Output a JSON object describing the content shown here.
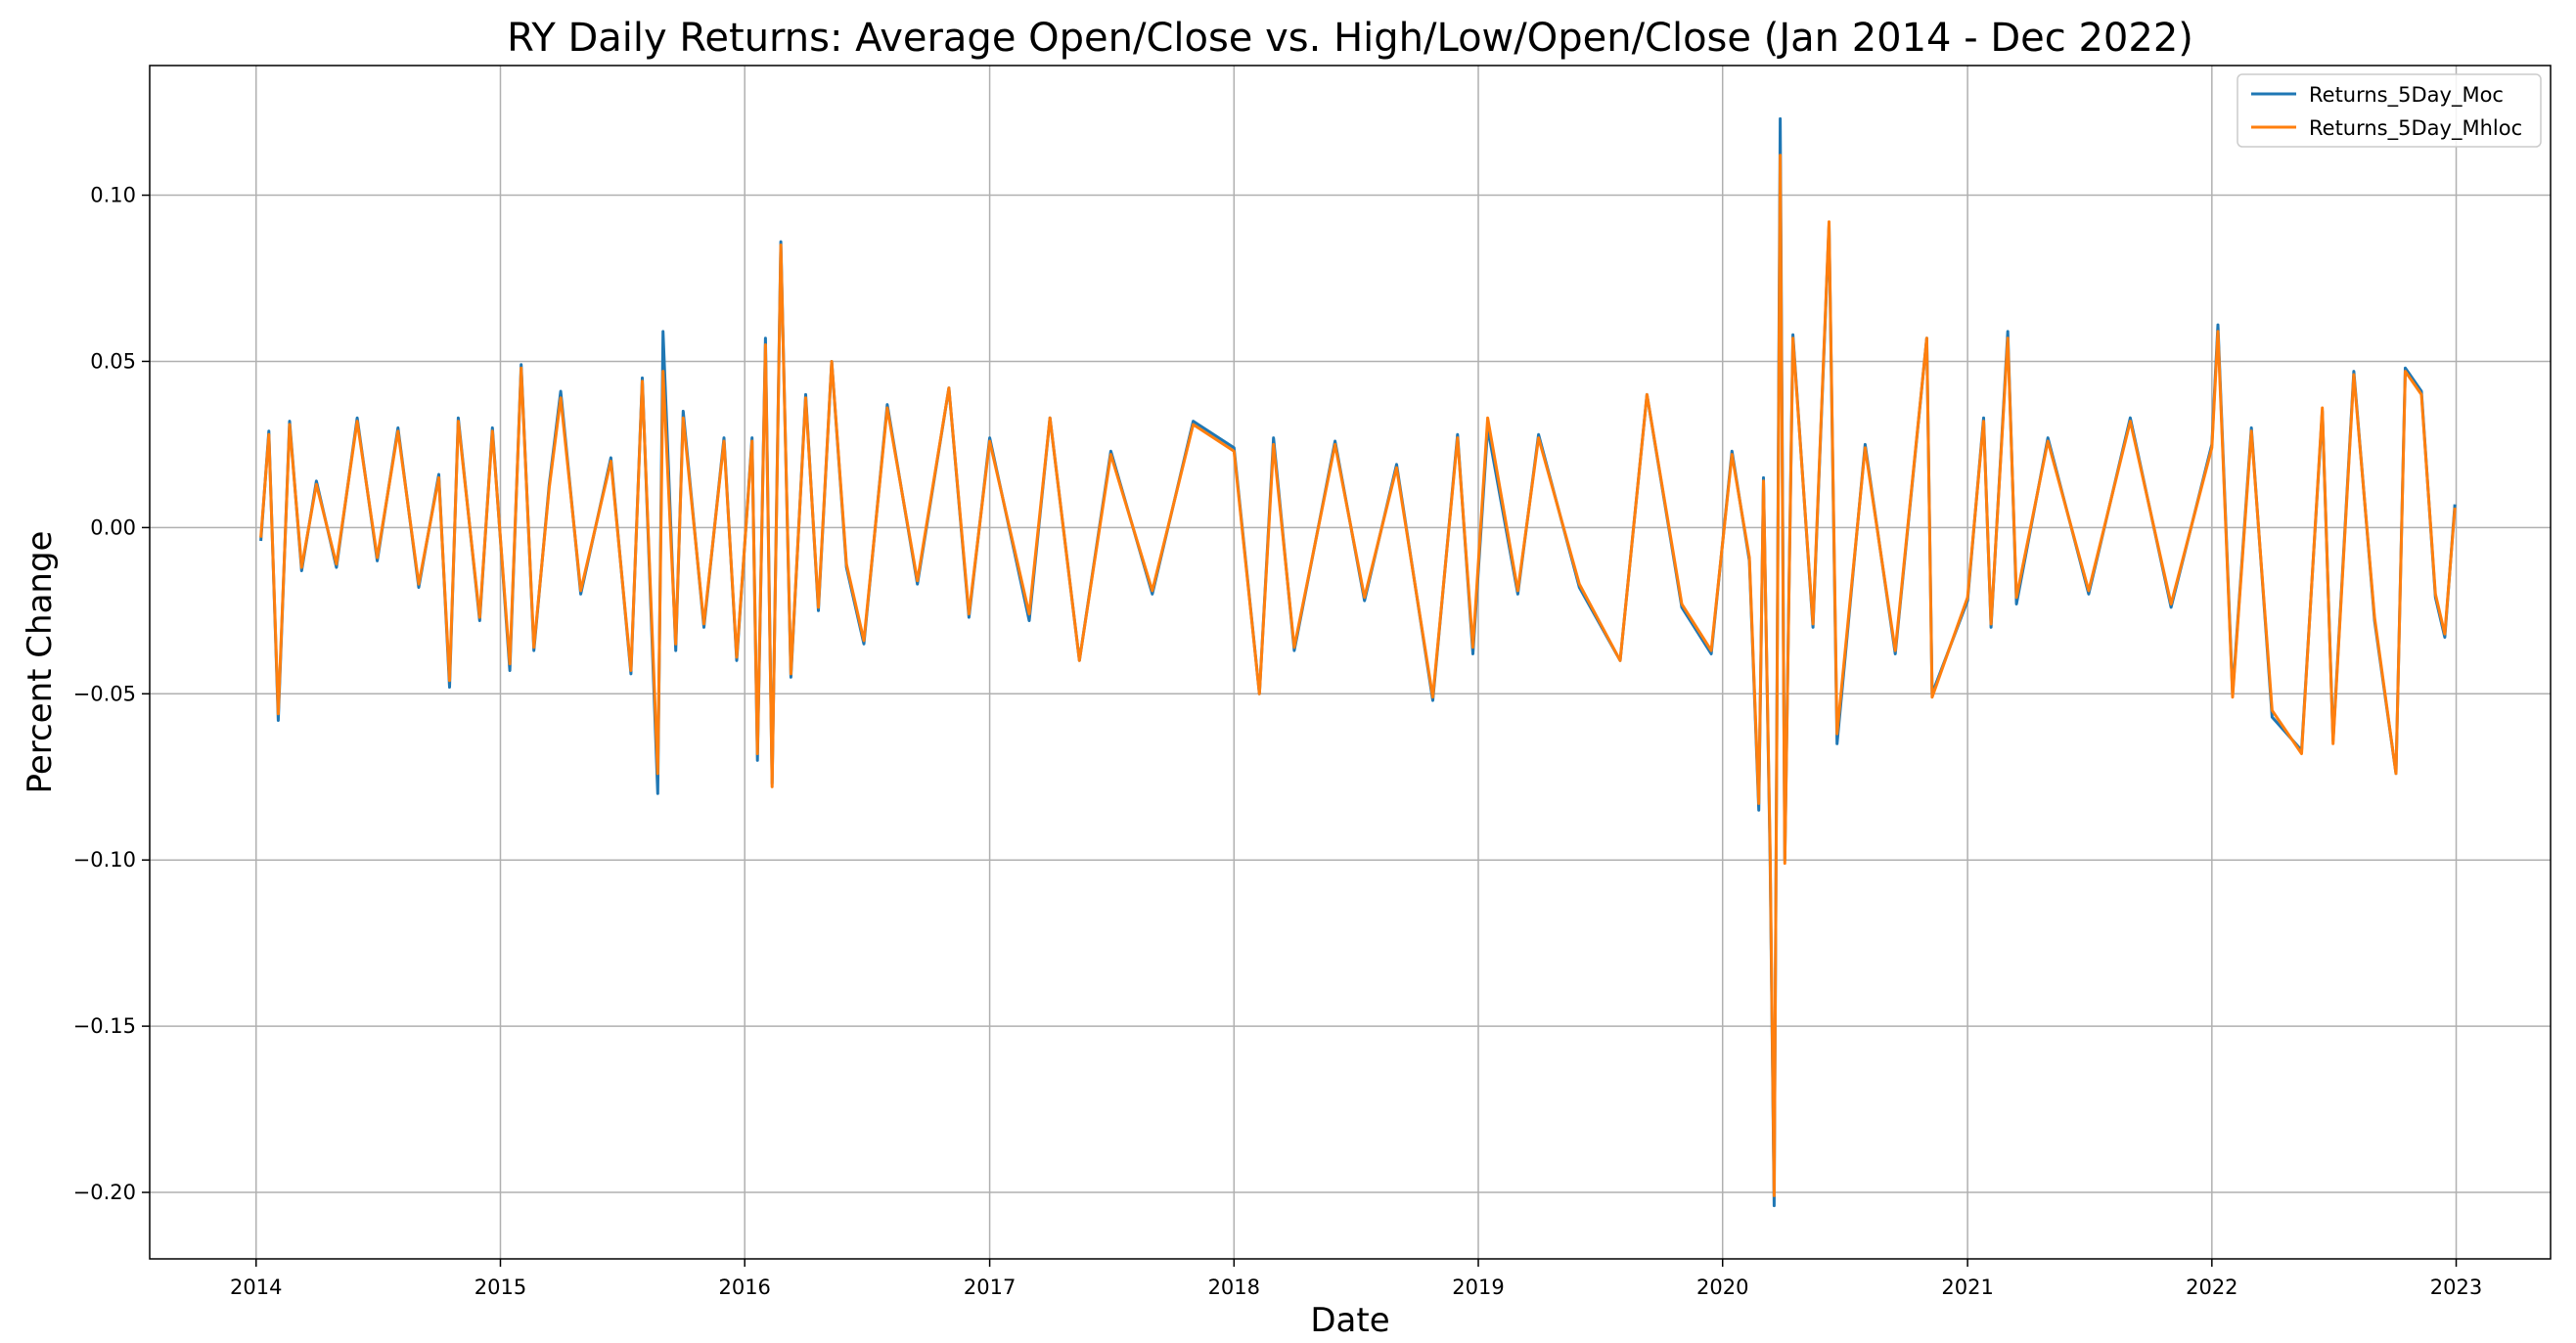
{
  "chart_data": {
    "type": "line",
    "title": "RY Daily Returns: Average Open/Close vs. High/Low/Open/Close (Jan 2014 - Dec 2022)",
    "xlabel": "Date",
    "ylabel": "Percent Change",
    "x_range": [
      "2013-07-26",
      "2023-05-22"
    ],
    "ylim": [
      -0.22,
      0.139
    ],
    "x_ticks": [
      "2014",
      "2015",
      "2016",
      "2017",
      "2018",
      "2019",
      "2020",
      "2021",
      "2022",
      "2023"
    ],
    "y_ticks": [
      "−0.20",
      "−0.15",
      "−0.10",
      "−0.05",
      "0.00",
      "0.05",
      "0.10"
    ],
    "grid": true,
    "legend_position": "top-right",
    "series": [
      {
        "name": "Returns_5Day_Moc",
        "color": "#1f77b4",
        "points": [
          [
            "2014-01-08",
            -0.004
          ],
          [
            "2014-01-20",
            0.029
          ],
          [
            "2014-02-03",
            -0.058
          ],
          [
            "2014-02-20",
            0.032
          ],
          [
            "2014-03-10",
            -0.013
          ],
          [
            "2014-04-01",
            0.014
          ],
          [
            "2014-05-01",
            -0.012
          ],
          [
            "2014-06-01",
            0.033
          ],
          [
            "2014-07-01",
            -0.01
          ],
          [
            "2014-08-01",
            0.03
          ],
          [
            "2014-09-01",
            -0.018
          ],
          [
            "2014-10-01",
            0.016
          ],
          [
            "2014-10-17",
            -0.048
          ],
          [
            "2014-10-30",
            0.033
          ],
          [
            "2014-12-01",
            -0.028
          ],
          [
            "2014-12-20",
            0.03
          ],
          [
            "2015-01-15",
            -0.043
          ],
          [
            "2015-02-01",
            0.049
          ],
          [
            "2015-02-20",
            -0.037
          ],
          [
            "2015-03-15",
            0.013
          ],
          [
            "2015-04-01",
            0.041
          ],
          [
            "2015-05-01",
            -0.02
          ],
          [
            "2015-06-15",
            0.021
          ],
          [
            "2015-07-15",
            -0.044
          ],
          [
            "2015-08-01",
            0.045
          ],
          [
            "2015-08-24",
            -0.08
          ],
          [
            "2015-09-01",
            0.059
          ],
          [
            "2015-09-20",
            -0.037
          ],
          [
            "2015-10-01",
            0.035
          ],
          [
            "2015-11-01",
            -0.03
          ],
          [
            "2015-12-01",
            0.027
          ],
          [
            "2015-12-20",
            -0.04
          ],
          [
            "2016-01-12",
            0.027
          ],
          [
            "2016-01-20",
            -0.07
          ],
          [
            "2016-02-01",
            0.057
          ],
          [
            "2016-02-11",
            -0.077
          ],
          [
            "2016-02-24",
            0.086
          ],
          [
            "2016-03-10",
            -0.045
          ],
          [
            "2016-04-01",
            0.04
          ],
          [
            "2016-04-20",
            -0.025
          ],
          [
            "2016-05-10",
            0.05
          ],
          [
            "2016-06-01",
            -0.012
          ],
          [
            "2016-06-27",
            -0.035
          ],
          [
            "2016-08-01",
            0.037
          ],
          [
            "2016-09-15",
            -0.017
          ],
          [
            "2016-11-01",
            0.042
          ],
          [
            "2016-12-01",
            -0.027
          ],
          [
            "2017-01-01",
            0.027
          ],
          [
            "2017-03-01",
            -0.028
          ],
          [
            "2017-04-01",
            0.033
          ],
          [
            "2017-05-15",
            -0.04
          ],
          [
            "2017-07-01",
            0.023
          ],
          [
            "2017-09-01",
            -0.02
          ],
          [
            "2017-11-01",
            0.032
          ],
          [
            "2018-01-01",
            0.024
          ],
          [
            "2018-02-08",
            -0.05
          ],
          [
            "2018-03-01",
            0.027
          ],
          [
            "2018-04-01",
            -0.037
          ],
          [
            "2018-06-01",
            0.026
          ],
          [
            "2018-07-15",
            -0.022
          ],
          [
            "2018-09-01",
            0.019
          ],
          [
            "2018-10-25",
            -0.052
          ],
          [
            "2018-12-01",
            0.028
          ],
          [
            "2018-12-24",
            -0.038
          ],
          [
            "2019-01-15",
            0.03
          ],
          [
            "2019-03-01",
            -0.02
          ],
          [
            "2019-04-01",
            0.028
          ],
          [
            "2019-06-01",
            -0.018
          ],
          [
            "2019-08-01",
            -0.04
          ],
          [
            "2019-09-10",
            0.04
          ],
          [
            "2019-11-01",
            -0.024
          ],
          [
            "2019-12-15",
            -0.038
          ],
          [
            "2020-01-15",
            0.023
          ],
          [
            "2020-02-10",
            -0.01
          ],
          [
            "2020-02-24",
            -0.085
          ],
          [
            "2020-03-02",
            0.015
          ],
          [
            "2020-03-12",
            -0.1
          ],
          [
            "2020-03-18",
            -0.204
          ],
          [
            "2020-03-27",
            0.123
          ],
          [
            "2020-04-03",
            -0.1
          ],
          [
            "2020-04-15",
            0.058
          ],
          [
            "2020-05-15",
            -0.03
          ],
          [
            "2020-06-08",
            0.091
          ],
          [
            "2020-06-20",
            -0.065
          ],
          [
            "2020-08-01",
            0.025
          ],
          [
            "2020-09-15",
            -0.038
          ],
          [
            "2020-11-01",
            0.057
          ],
          [
            "2020-11-09",
            -0.05
          ],
          [
            "2021-01-01",
            -0.022
          ],
          [
            "2021-01-25",
            0.033
          ],
          [
            "2021-02-05",
            -0.03
          ],
          [
            "2021-03-02",
            0.059
          ],
          [
            "2021-03-15",
            -0.023
          ],
          [
            "2021-05-01",
            0.027
          ],
          [
            "2021-07-01",
            -0.02
          ],
          [
            "2021-09-01",
            0.033
          ],
          [
            "2021-11-01",
            -0.024
          ],
          [
            "2022-01-01",
            0.025
          ],
          [
            "2022-01-10",
            0.061
          ],
          [
            "2022-02-01",
            -0.05
          ],
          [
            "2022-03-01",
            0.03
          ],
          [
            "2022-04-01",
            -0.057
          ],
          [
            "2022-05-15",
            -0.067
          ],
          [
            "2022-06-15",
            0.035
          ],
          [
            "2022-07-01",
            -0.064
          ],
          [
            "2022-08-01",
            0.047
          ],
          [
            "2022-09-01",
            -0.028
          ],
          [
            "2022-10-03",
            -0.074
          ],
          [
            "2022-10-17",
            0.048
          ],
          [
            "2022-11-10",
            0.041
          ],
          [
            "2022-12-01",
            -0.021
          ],
          [
            "2022-12-15",
            -0.033
          ],
          [
            "2022-12-30",
            0.007
          ]
        ]
      },
      {
        "name": "Returns_5Day_Mhloc",
        "color": "#ff7f0e",
        "points": [
          [
            "2014-01-08",
            -0.003
          ],
          [
            "2014-01-20",
            0.028
          ],
          [
            "2014-02-03",
            -0.056
          ],
          [
            "2014-02-20",
            0.031
          ],
          [
            "2014-03-10",
            -0.012
          ],
          [
            "2014-04-01",
            0.013
          ],
          [
            "2014-05-01",
            -0.011
          ],
          [
            "2014-06-01",
            0.032
          ],
          [
            "2014-07-01",
            -0.009
          ],
          [
            "2014-08-01",
            0.029
          ],
          [
            "2014-09-01",
            -0.017
          ],
          [
            "2014-10-01",
            0.015
          ],
          [
            "2014-10-17",
            -0.046
          ],
          [
            "2014-10-30",
            0.032
          ],
          [
            "2014-12-01",
            -0.027
          ],
          [
            "2014-12-20",
            0.029
          ],
          [
            "2015-01-15",
            -0.041
          ],
          [
            "2015-02-01",
            0.048
          ],
          [
            "2015-02-20",
            -0.036
          ],
          [
            "2015-03-15",
            0.012
          ],
          [
            "2015-04-01",
            0.039
          ],
          [
            "2015-05-01",
            -0.019
          ],
          [
            "2015-06-15",
            0.02
          ],
          [
            "2015-07-15",
            -0.043
          ],
          [
            "2015-08-01",
            0.044
          ],
          [
            "2015-08-24",
            -0.074
          ],
          [
            "2015-09-01",
            0.047
          ],
          [
            "2015-09-20",
            -0.035
          ],
          [
            "2015-10-01",
            0.033
          ],
          [
            "2015-11-01",
            -0.029
          ],
          [
            "2015-12-01",
            0.026
          ],
          [
            "2015-12-20",
            -0.039
          ],
          [
            "2016-01-12",
            0.026
          ],
          [
            "2016-01-20",
            -0.068
          ],
          [
            "2016-02-01",
            0.055
          ],
          [
            "2016-02-11",
            -0.078
          ],
          [
            "2016-02-24",
            0.085
          ],
          [
            "2016-03-10",
            -0.044
          ],
          [
            "2016-04-01",
            0.039
          ],
          [
            "2016-04-20",
            -0.024
          ],
          [
            "2016-05-10",
            0.05
          ],
          [
            "2016-06-01",
            -0.011
          ],
          [
            "2016-06-27",
            -0.034
          ],
          [
            "2016-08-01",
            0.036
          ],
          [
            "2016-09-15",
            -0.016
          ],
          [
            "2016-11-01",
            0.042
          ],
          [
            "2016-12-01",
            -0.026
          ],
          [
            "2017-01-01",
            0.026
          ],
          [
            "2017-03-01",
            -0.026
          ],
          [
            "2017-04-01",
            0.033
          ],
          [
            "2017-05-15",
            -0.04
          ],
          [
            "2017-07-01",
            0.022
          ],
          [
            "2017-09-01",
            -0.019
          ],
          [
            "2017-11-01",
            0.031
          ],
          [
            "2018-01-01",
            0.023
          ],
          [
            "2018-02-08",
            -0.05
          ],
          [
            "2018-03-01",
            0.025
          ],
          [
            "2018-04-01",
            -0.036
          ],
          [
            "2018-06-01",
            0.025
          ],
          [
            "2018-07-15",
            -0.021
          ],
          [
            "2018-09-01",
            0.018
          ],
          [
            "2018-10-25",
            -0.051
          ],
          [
            "2018-12-01",
            0.027
          ],
          [
            "2018-12-24",
            -0.036
          ],
          [
            "2019-01-15",
            0.033
          ],
          [
            "2019-03-01",
            -0.019
          ],
          [
            "2019-04-01",
            0.027
          ],
          [
            "2019-06-01",
            -0.017
          ],
          [
            "2019-08-01",
            -0.04
          ],
          [
            "2019-09-10",
            0.04
          ],
          [
            "2019-11-01",
            -0.023
          ],
          [
            "2019-12-15",
            -0.037
          ],
          [
            "2020-01-15",
            0.022
          ],
          [
            "2020-02-10",
            -0.009
          ],
          [
            "2020-02-24",
            -0.083
          ],
          [
            "2020-03-02",
            0.014
          ],
          [
            "2020-03-12",
            -0.097
          ],
          [
            "2020-03-18",
            -0.201
          ],
          [
            "2020-03-27",
            0.112
          ],
          [
            "2020-04-03",
            -0.101
          ],
          [
            "2020-04-15",
            0.057
          ],
          [
            "2020-05-15",
            -0.029
          ],
          [
            "2020-06-08",
            0.092
          ],
          [
            "2020-06-20",
            -0.062
          ],
          [
            "2020-08-01",
            0.024
          ],
          [
            "2020-09-15",
            -0.037
          ],
          [
            "2020-11-01",
            0.057
          ],
          [
            "2020-11-09",
            -0.051
          ],
          [
            "2021-01-01",
            -0.021
          ],
          [
            "2021-01-25",
            0.032
          ],
          [
            "2021-02-05",
            -0.029
          ],
          [
            "2021-03-02",
            0.057
          ],
          [
            "2021-03-15",
            -0.021
          ],
          [
            "2021-05-01",
            0.026
          ],
          [
            "2021-07-01",
            -0.019
          ],
          [
            "2021-09-01",
            0.032
          ],
          [
            "2021-11-01",
            -0.023
          ],
          [
            "2022-01-01",
            0.024
          ],
          [
            "2022-01-10",
            0.059
          ],
          [
            "2022-02-01",
            -0.051
          ],
          [
            "2022-03-01",
            0.029
          ],
          [
            "2022-04-01",
            -0.055
          ],
          [
            "2022-05-15",
            -0.068
          ],
          [
            "2022-06-15",
            0.036
          ],
          [
            "2022-07-01",
            -0.065
          ],
          [
            "2022-08-01",
            0.046
          ],
          [
            "2022-09-01",
            -0.027
          ],
          [
            "2022-10-03",
            -0.074
          ],
          [
            "2022-10-17",
            0.047
          ],
          [
            "2022-11-10",
            0.04
          ],
          [
            "2022-12-01",
            -0.02
          ],
          [
            "2022-12-15",
            -0.032
          ],
          [
            "2022-12-30",
            0.006
          ]
        ]
      }
    ]
  }
}
